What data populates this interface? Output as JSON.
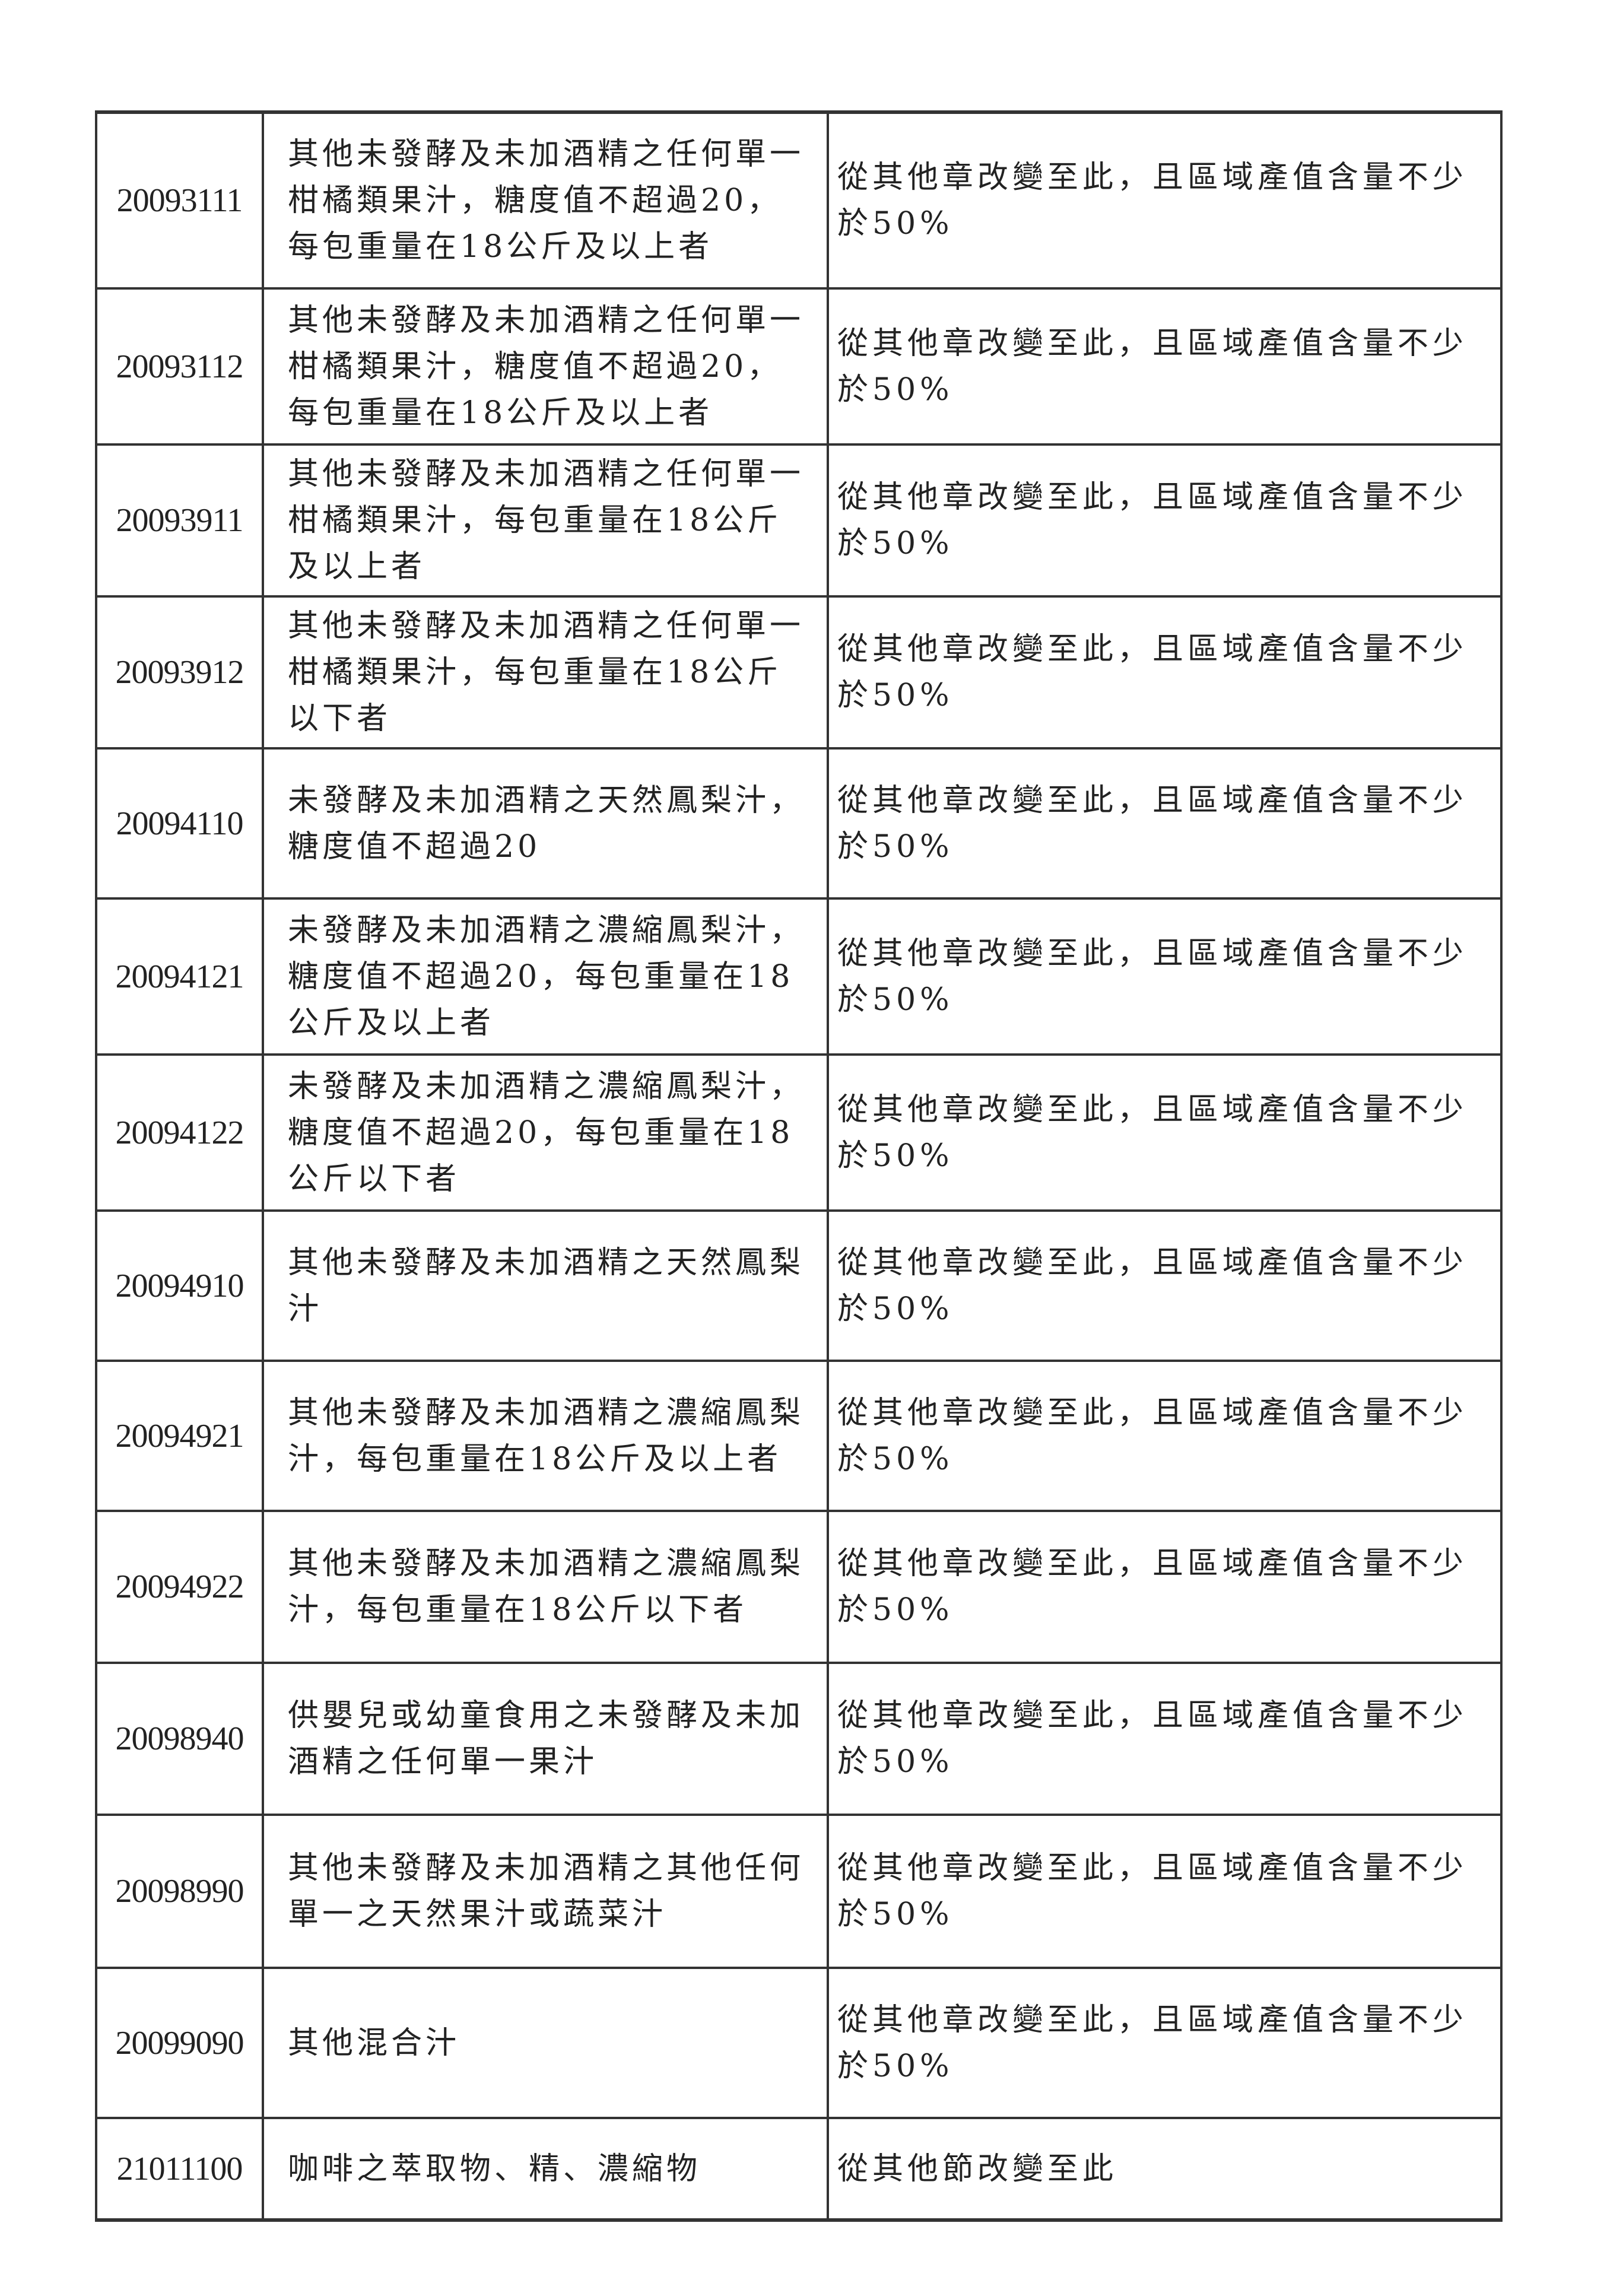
{
  "rows": [
    {
      "code": "20093111",
      "desc": "其他未發酵及未加酒精之任何單一柑橘類果汁，糖度值不超過20，每包重量在18公斤及以上者",
      "rule": "從其他章改變至此，且區域產值含量不少於50%"
    },
    {
      "code": "20093112",
      "desc": "其他未發酵及未加酒精之任何單一柑橘類果汁，糖度值不超過20，每包重量在18公斤及以上者",
      "rule": "從其他章改變至此，且區域產值含量不少於50%"
    },
    {
      "code": "20093911",
      "desc": "其他未發酵及未加酒精之任何單一柑橘類果汁，每包重量在18公斤及以上者",
      "rule": "從其他章改變至此，且區域產值含量不少於50%"
    },
    {
      "code": "20093912",
      "desc": "其他未發酵及未加酒精之任何單一柑橘類果汁，每包重量在18公斤以下者",
      "rule": "從其他章改變至此，且區域產值含量不少於50%"
    },
    {
      "code": "20094110",
      "desc": "未發酵及未加酒精之天然鳳梨汁，糖度值不超過20",
      "rule": "從其他章改變至此，且區域產值含量不少於50%"
    },
    {
      "code": "20094121",
      "desc": "未發酵及未加酒精之濃縮鳳梨汁，糖度值不超過20，每包重量在18公斤及以上者",
      "rule": "從其他章改變至此，且區域產值含量不少於50%"
    },
    {
      "code": "20094122",
      "desc": "未發酵及未加酒精之濃縮鳳梨汁，糖度值不超過20，每包重量在18公斤以下者",
      "rule": "從其他章改變至此，且區域產值含量不少於50%"
    },
    {
      "code": "20094910",
      "desc": "其他未發酵及未加酒精之天然鳳梨汁",
      "rule": "從其他章改變至此，且區域產值含量不少於50%"
    },
    {
      "code": "20094921",
      "desc": "其他未發酵及未加酒精之濃縮鳳梨汁，每包重量在18公斤及以上者",
      "rule": "從其他章改變至此，且區域產值含量不少於50%"
    },
    {
      "code": "20094922",
      "desc": "其他未發酵及未加酒精之濃縮鳳梨汁，每包重量在18公斤以下者",
      "rule": "從其他章改變至此，且區域產值含量不少於50%"
    },
    {
      "code": "20098940",
      "desc": "供嬰兒或幼童食用之未發酵及未加酒精之任何單一果汁",
      "rule": "從其他章改變至此，且區域產值含量不少於50%"
    },
    {
      "code": "20098990",
      "desc": "其他未發酵及未加酒精之其他任何單一之天然果汁或蔬菜汁",
      "rule": "從其他章改變至此，且區域產值含量不少於50%"
    },
    {
      "code": "20099090",
      "desc": "其他混合汁",
      "rule": "從其他章改變至此，且區域產值含量不少於50%"
    },
    {
      "code": "21011100",
      "desc": "咖啡之萃取物、精、濃縮物",
      "rule": "從其他節改變至此"
    }
  ]
}
